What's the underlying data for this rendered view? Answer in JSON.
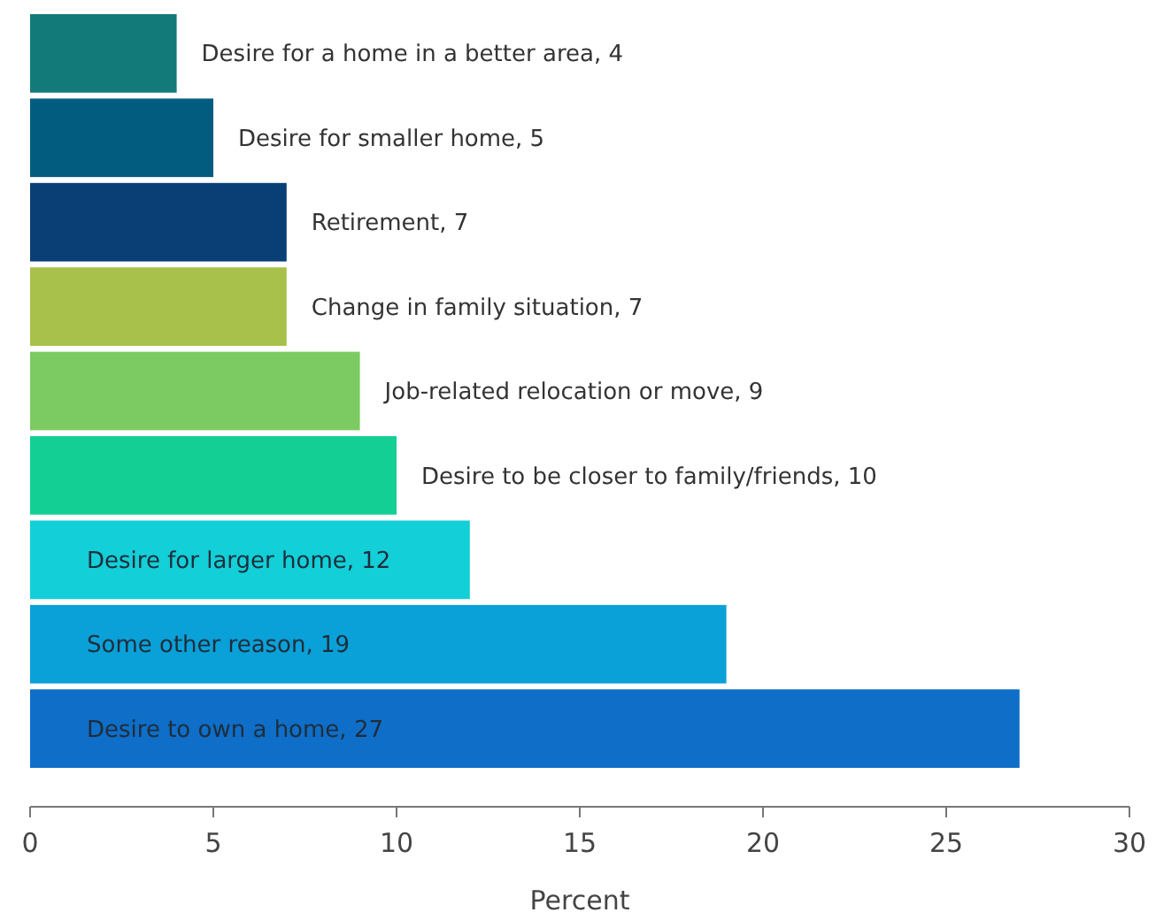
{
  "chart_data": {
    "type": "bar",
    "orientation": "horizontal",
    "xlabel": "Percent",
    "categories": [
      "Desire for a home in a better area, 4",
      "Desire for smaller home, 5",
      "Retirement, 7",
      "Change in family situation, 7",
      "Job-related relocation or move, 9",
      "Desire to be closer to family/friends, 10",
      "Desire for larger home, 12",
      "Some other reason, 19",
      "Desire to own a home, 27"
    ],
    "values": [
      4,
      5,
      7,
      7,
      9,
      10,
      12,
      19,
      27
    ],
    "colors": [
      "#137a7a",
      "#025c80",
      "#0a3f75",
      "#a8c14a",
      "#7ccb62",
      "#14cf94",
      "#12cfd8",
      "#0aa0d8",
      "#0e6ec8"
    ],
    "xlim": [
      0,
      30
    ],
    "xticks": [
      0,
      5,
      10,
      15,
      20,
      25,
      30
    ],
    "tick_labels": "x"
  }
}
